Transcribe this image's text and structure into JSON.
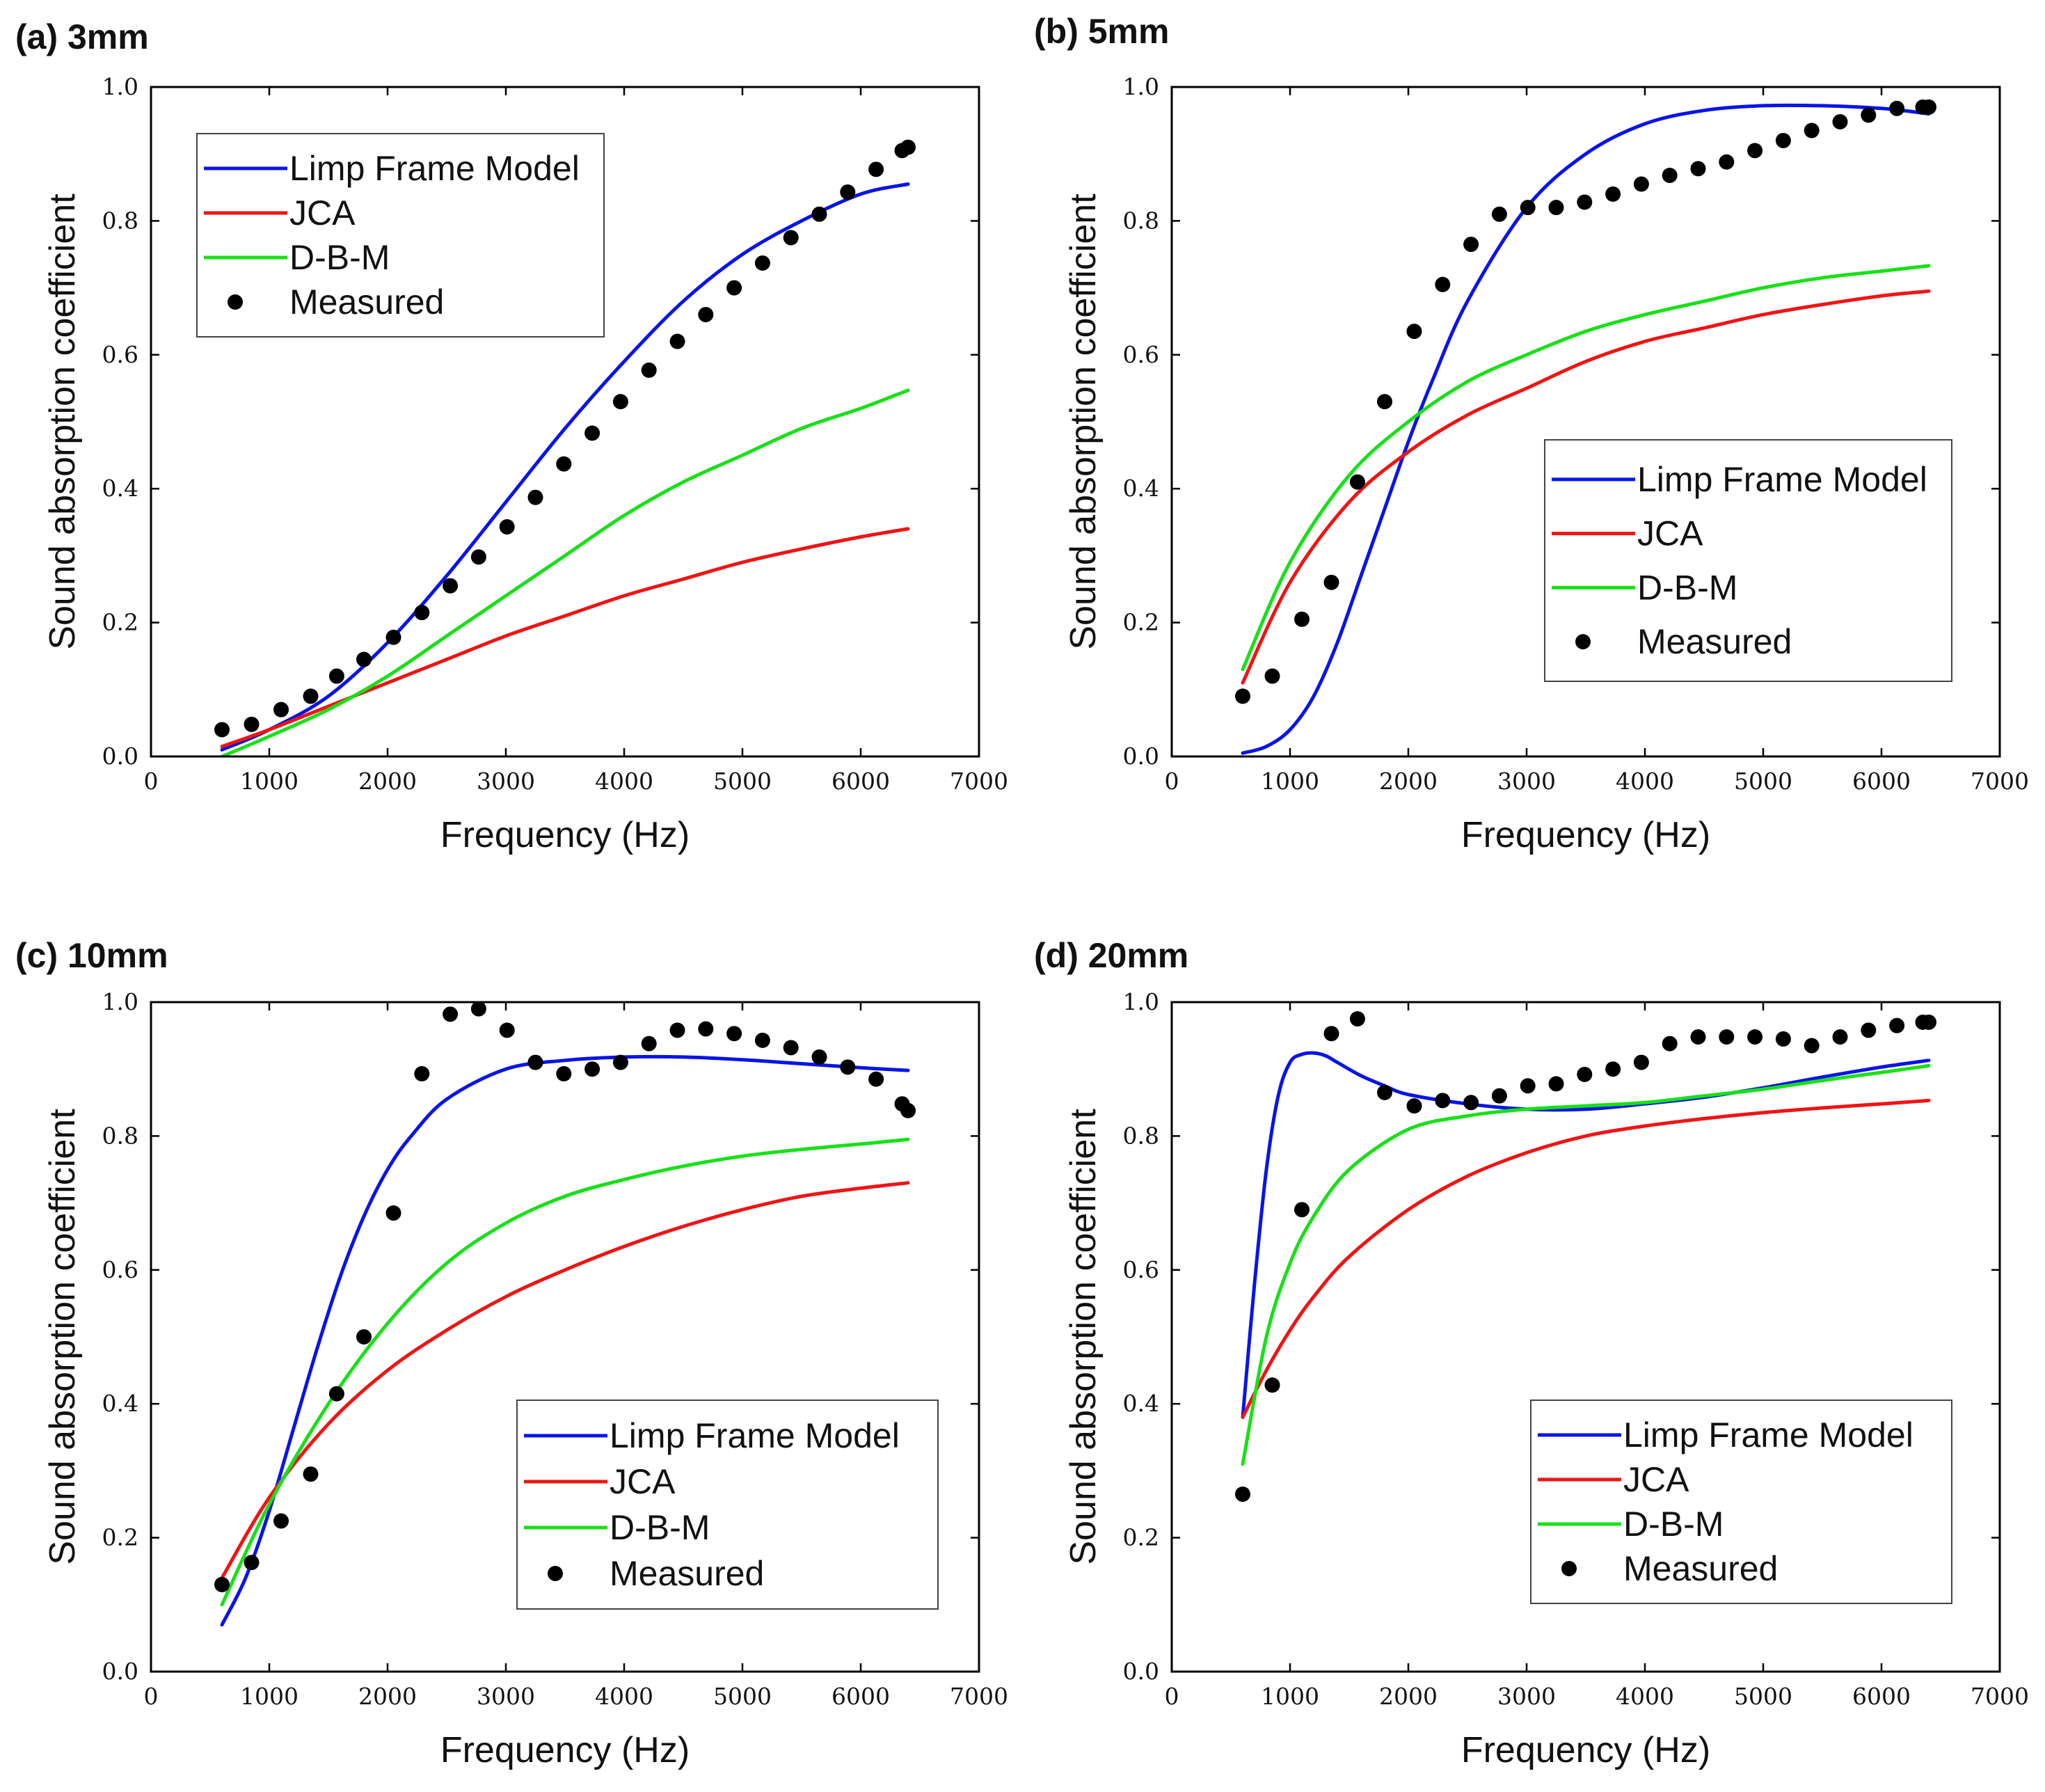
{
  "colors": {
    "limp": "#0a14e6",
    "jca": "#ee1515",
    "dbm": "#18e018",
    "measured": "#000000"
  },
  "chart_data": [
    {
      "type": "line",
      "title": "(a) 3mm",
      "xlabel": "Frequency (Hz)",
      "ylabel": "Sound absorption coefficient",
      "xlim": [
        0,
        7000
      ],
      "ylim": [
        0,
        1.0
      ],
      "xticks": [
        "0",
        "1000",
        "2000",
        "3000",
        "4000",
        "5000",
        "6000",
        "7000"
      ],
      "yticks": [
        "0.0",
        "0.2",
        "0.4",
        "0.6",
        "0.8",
        "1.0"
      ],
      "legend_position": "top-left",
      "series": [
        {
          "name": "Limp Frame Model",
          "kind": "line",
          "color_key": "limp",
          "x": [
            600,
            1000,
            1500,
            2000,
            2500,
            3000,
            3500,
            4000,
            4500,
            5000,
            5500,
            6000,
            6400
          ],
          "y": [
            0.01,
            0.04,
            0.09,
            0.17,
            0.27,
            0.38,
            0.49,
            0.59,
            0.68,
            0.75,
            0.8,
            0.84,
            0.855
          ]
        },
        {
          "name": "JCA",
          "kind": "line",
          "color_key": "jca",
          "x": [
            600,
            1000,
            1500,
            2000,
            2500,
            3000,
            3500,
            4000,
            4500,
            5000,
            5500,
            6000,
            6400
          ],
          "y": [
            0.015,
            0.04,
            0.075,
            0.11,
            0.145,
            0.18,
            0.21,
            0.24,
            0.265,
            0.29,
            0.31,
            0.328,
            0.34
          ]
        },
        {
          "name": "D-B-M",
          "kind": "line",
          "color_key": "dbm",
          "x": [
            600,
            1000,
            1500,
            2000,
            2500,
            3000,
            3500,
            4000,
            4500,
            5000,
            5500,
            6000,
            6400
          ],
          "y": [
            0.0,
            0.03,
            0.07,
            0.12,
            0.18,
            0.24,
            0.3,
            0.36,
            0.41,
            0.45,
            0.49,
            0.52,
            0.547
          ]
        },
        {
          "name": "Measured",
          "kind": "scatter",
          "color_key": "measured",
          "x": [
            600,
            850,
            1100,
            1350,
            1570,
            1800,
            2050,
            2290,
            2530,
            2770,
            3010,
            3250,
            3490,
            3730,
            3970,
            4210,
            4450,
            4690,
            4930,
            5170,
            5410,
            5650,
            5890,
            6130,
            6350,
            6400
          ],
          "y": [
            0.04,
            0.048,
            0.07,
            0.09,
            0.12,
            0.145,
            0.178,
            0.215,
            0.255,
            0.298,
            0.343,
            0.387,
            0.437,
            0.483,
            0.53,
            0.577,
            0.62,
            0.66,
            0.7,
            0.737,
            0.775,
            0.81,
            0.843,
            0.877,
            0.905,
            0.91
          ]
        }
      ]
    },
    {
      "type": "line",
      "title": "(b) 5mm",
      "xlabel": "Frequency (Hz)",
      "ylabel": "Sound absorption coefficient",
      "xlim": [
        0,
        7000
      ],
      "ylim": [
        0,
        1.0
      ],
      "xticks": [
        "0",
        "1000",
        "2000",
        "3000",
        "4000",
        "5000",
        "6000",
        "7000"
      ],
      "yticks": [
        "0.0",
        "0.2",
        "0.4",
        "0.6",
        "0.8",
        "1.0"
      ],
      "legend_position": "bottom-right",
      "series": [
        {
          "name": "Limp Frame Model",
          "kind": "line",
          "color_key": "limp",
          "x": [
            600,
            800,
            1000,
            1200,
            1400,
            1600,
            1800,
            2000,
            2200,
            2500,
            3000,
            3500,
            4000,
            4500,
            5000,
            5500,
            6000,
            6400
          ],
          "y": [
            0.005,
            0.015,
            0.04,
            0.09,
            0.17,
            0.27,
            0.37,
            0.47,
            0.56,
            0.68,
            0.82,
            0.9,
            0.945,
            0.965,
            0.972,
            0.972,
            0.968,
            0.96
          ]
        },
        {
          "name": "JCA",
          "kind": "line",
          "color_key": "jca",
          "x": [
            600,
            1000,
            1500,
            2000,
            2500,
            3000,
            3500,
            4000,
            4500,
            5000,
            5500,
            6000,
            6400
          ],
          "y": [
            0.11,
            0.26,
            0.38,
            0.455,
            0.51,
            0.55,
            0.59,
            0.62,
            0.64,
            0.66,
            0.675,
            0.688,
            0.695
          ]
        },
        {
          "name": "D-B-M",
          "kind": "line",
          "color_key": "dbm",
          "x": [
            600,
            1000,
            1500,
            2000,
            2500,
            3000,
            3500,
            4000,
            4500,
            5000,
            5500,
            6000,
            6400
          ],
          "y": [
            0.13,
            0.29,
            0.42,
            0.5,
            0.56,
            0.6,
            0.635,
            0.66,
            0.68,
            0.7,
            0.715,
            0.725,
            0.733
          ]
        },
        {
          "name": "Measured",
          "kind": "scatter",
          "color_key": "measured",
          "x": [
            600,
            850,
            1100,
            1350,
            1570,
            1800,
            2050,
            2290,
            2530,
            2770,
            3010,
            3250,
            3490,
            3730,
            3970,
            4210,
            4450,
            4690,
            4930,
            5170,
            5410,
            5650,
            5890,
            6130,
            6350,
            6400
          ],
          "y": [
            0.09,
            0.12,
            0.205,
            0.26,
            0.41,
            0.53,
            0.635,
            0.705,
            0.765,
            0.81,
            0.82,
            0.82,
            0.828,
            0.84,
            0.855,
            0.868,
            0.878,
            0.888,
            0.905,
            0.92,
            0.935,
            0.948,
            0.958,
            0.968,
            0.97,
            0.97
          ]
        }
      ]
    },
    {
      "type": "line",
      "title": "(c) 10mm",
      "xlabel": "Frequency (Hz)",
      "ylabel": "Sound absorption coefficient",
      "xlim": [
        0,
        7000
      ],
      "ylim": [
        0,
        1.0
      ],
      "xticks": [
        "0",
        "1000",
        "2000",
        "3000",
        "4000",
        "5000",
        "6000",
        "7000"
      ],
      "yticks": [
        "0.0",
        "0.2",
        "0.4",
        "0.6",
        "0.8",
        "1.0"
      ],
      "legend_position": "bottom-right",
      "series": [
        {
          "name": "Limp Frame Model",
          "kind": "line",
          "color_key": "limp",
          "x": [
            600,
            800,
            1000,
            1200,
            1400,
            1600,
            1800,
            2000,
            2200,
            2500,
            3000,
            3500,
            4000,
            4500,
            5000,
            5500,
            6000,
            6400
          ],
          "y": [
            0.07,
            0.14,
            0.24,
            0.36,
            0.48,
            0.59,
            0.68,
            0.75,
            0.8,
            0.855,
            0.9,
            0.913,
            0.918,
            0.918,
            0.914,
            0.908,
            0.902,
            0.898
          ]
        },
        {
          "name": "JCA",
          "kind": "line",
          "color_key": "jca",
          "x": [
            600,
            1000,
            1500,
            2000,
            2500,
            3000,
            3500,
            4000,
            4500,
            5000,
            5500,
            6000,
            6400
          ],
          "y": [
            0.14,
            0.26,
            0.37,
            0.45,
            0.51,
            0.56,
            0.6,
            0.635,
            0.665,
            0.69,
            0.71,
            0.722,
            0.73
          ]
        },
        {
          "name": "D-B-M",
          "kind": "line",
          "color_key": "dbm",
          "x": [
            600,
            1000,
            1500,
            2000,
            2500,
            3000,
            3500,
            4000,
            4500,
            5000,
            5500,
            6000,
            6400
          ],
          "y": [
            0.1,
            0.25,
            0.4,
            0.52,
            0.61,
            0.67,
            0.71,
            0.735,
            0.755,
            0.77,
            0.78,
            0.788,
            0.795
          ]
        },
        {
          "name": "Measured",
          "kind": "scatter",
          "color_key": "measured",
          "x": [
            600,
            850,
            1100,
            1350,
            1570,
            1800,
            2050,
            2290,
            2530,
            2770,
            3010,
            3250,
            3490,
            3730,
            3970,
            4210,
            4450,
            4690,
            4930,
            5170,
            5410,
            5650,
            5890,
            6130,
            6350,
            6400
          ],
          "y": [
            0.13,
            0.163,
            0.225,
            0.295,
            0.415,
            0.5,
            0.685,
            0.893,
            0.982,
            0.99,
            0.958,
            0.91,
            0.893,
            0.9,
            0.91,
            0.938,
            0.958,
            0.96,
            0.953,
            0.943,
            0.932,
            0.918,
            0.903,
            0.885,
            0.848,
            0.838
          ]
        }
      ]
    },
    {
      "type": "line",
      "title": "(d) 20mm",
      "xlabel": "Frequency (Hz)",
      "ylabel": "Sound absorption coefficient",
      "xlim": [
        0,
        7000
      ],
      "ylim": [
        0,
        1.0
      ],
      "xticks": [
        "0",
        "1000",
        "2000",
        "3000",
        "4000",
        "5000",
        "6000",
        "7000"
      ],
      "yticks": [
        "0.0",
        "0.2",
        "0.4",
        "0.6",
        "0.8",
        "1.0"
      ],
      "legend_position": "bottom-right",
      "series": [
        {
          "name": "Limp Frame Model",
          "kind": "line",
          "color_key": "limp",
          "x": [
            600,
            700,
            800,
            900,
            1000,
            1100,
            1200,
            1300,
            1400,
            1600,
            1800,
            2000,
            2500,
            3000,
            3500,
            4000,
            4500,
            5000,
            5500,
            6000,
            6400
          ],
          "y": [
            0.38,
            0.58,
            0.75,
            0.86,
            0.91,
            0.922,
            0.924,
            0.92,
            0.91,
            0.89,
            0.875,
            0.862,
            0.848,
            0.84,
            0.84,
            0.848,
            0.858,
            0.872,
            0.888,
            0.903,
            0.913
          ]
        },
        {
          "name": "JCA",
          "kind": "line",
          "color_key": "jca",
          "x": [
            600,
            800,
            1000,
            1200,
            1500,
            2000,
            2500,
            3000,
            3500,
            4000,
            4500,
            5000,
            5500,
            6000,
            6400
          ],
          "y": [
            0.38,
            0.45,
            0.51,
            0.56,
            0.62,
            0.69,
            0.74,
            0.775,
            0.8,
            0.815,
            0.826,
            0.835,
            0.842,
            0.848,
            0.853
          ]
        },
        {
          "name": "D-B-M",
          "kind": "line",
          "color_key": "dbm",
          "x": [
            600,
            800,
            1000,
            1200,
            1500,
            2000,
            2500,
            3000,
            3500,
            4000,
            4500,
            5000,
            5500,
            6000,
            6400
          ],
          "y": [
            0.31,
            0.5,
            0.61,
            0.68,
            0.75,
            0.81,
            0.83,
            0.84,
            0.845,
            0.85,
            0.86,
            0.87,
            0.883,
            0.895,
            0.905
          ]
        },
        {
          "name": "Measured",
          "kind": "scatter",
          "color_key": "measured",
          "x": [
            600,
            850,
            1100,
            1350,
            1570,
            1800,
            2050,
            2290,
            2530,
            2770,
            3010,
            3250,
            3490,
            3730,
            3970,
            4210,
            4450,
            4690,
            4930,
            5170,
            5410,
            5650,
            5890,
            6130,
            6350,
            6400
          ],
          "y": [
            0.265,
            0.428,
            0.69,
            0.953,
            0.975,
            0.865,
            0.845,
            0.853,
            0.85,
            0.86,
            0.875,
            0.878,
            0.892,
            0.9,
            0.91,
            0.938,
            0.948,
            0.948,
            0.948,
            0.945,
            0.935,
            0.948,
            0.958,
            0.965,
            0.97,
            0.97
          ]
        }
      ]
    }
  ]
}
